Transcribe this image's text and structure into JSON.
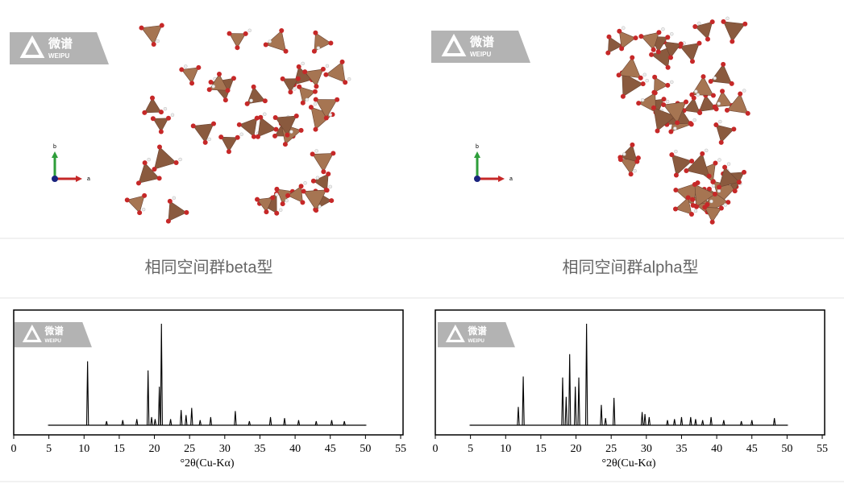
{
  "logo": {
    "name": "微谱",
    "sub": "WEIPU"
  },
  "panels": [
    {
      "caption": "相同空间群beta型",
      "axis_labels": [
        "b",
        "a"
      ]
    },
    {
      "caption": "相同空间群alpha型",
      "axis_labels": [
        "b",
        "a"
      ]
    }
  ],
  "chart_data": [
    {
      "type": "line",
      "xlabel": "°2θ(Cu-Kα)",
      "xlim": [
        0,
        55
      ],
      "xticks": [
        0,
        5,
        10,
        15,
        20,
        25,
        30,
        35,
        40,
        45,
        50,
        55
      ],
      "color": "#000000",
      "x": [
        5,
        10.5,
        13.2,
        15.5,
        17.5,
        19.1,
        19.6,
        20.1,
        20.7,
        21.0,
        22.3,
        23.8,
        24.5,
        25.3,
        26.5,
        28.0,
        31.5,
        33.5,
        36.5,
        38.5,
        40.5,
        43.0,
        45.2,
        47.0,
        50
      ],
      "values": [
        0,
        63,
        4,
        5,
        6,
        54,
        8,
        6,
        38,
        100,
        6,
        15,
        10,
        17,
        5,
        8,
        14,
        4,
        8,
        7,
        5,
        4,
        5,
        4,
        0
      ]
    },
    {
      "type": "line",
      "xlabel": "°2θ(Cu-Kα)",
      "xlim": [
        0,
        55
      ],
      "xticks": [
        0,
        5,
        10,
        15,
        20,
        25,
        30,
        35,
        40,
        45,
        50,
        55
      ],
      "color": "#000000",
      "x": [
        5,
        11.8,
        12.5,
        18.1,
        18.6,
        19.1,
        19.9,
        20.4,
        21.5,
        23.6,
        24.2,
        25.4,
        29.4,
        29.8,
        30.4,
        33.0,
        34.0,
        35.0,
        36.3,
        37.0,
        38.0,
        39.2,
        41.0,
        43.5,
        45.0,
        48.2,
        50
      ],
      "values": [
        0,
        18,
        48,
        47,
        28,
        70,
        38,
        47,
        100,
        20,
        7,
        27,
        13,
        11,
        8,
        5,
        6,
        8,
        8,
        6,
        5,
        8,
        5,
        4,
        5,
        7,
        0
      ]
    }
  ]
}
